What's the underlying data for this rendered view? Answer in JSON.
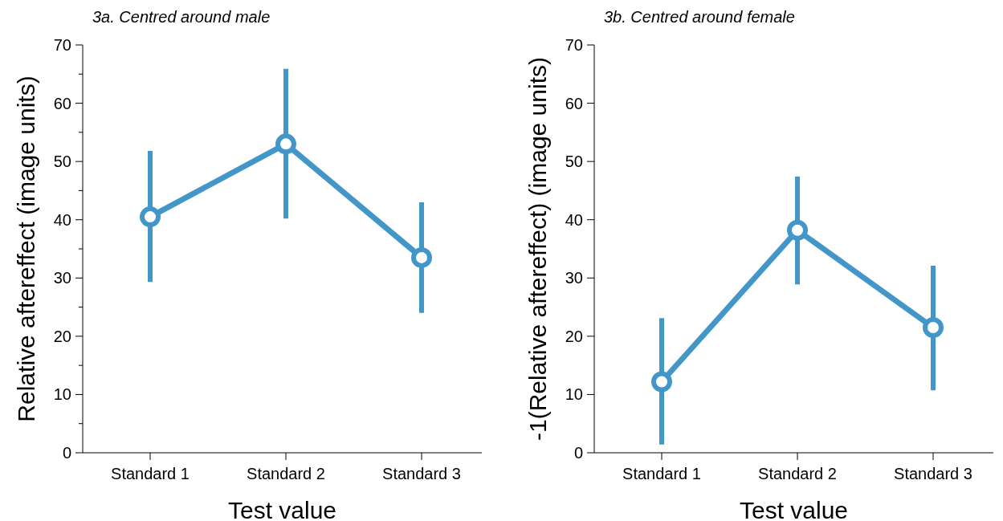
{
  "chart_data": [
    {
      "type": "line",
      "title": "3a. Centred around male",
      "xlabel": "Test value",
      "ylabel": "Relative aftereffect (image units)",
      "categories": [
        "Standard 1",
        "Standard 2",
        "Standard 3"
      ],
      "series": [
        {
          "color": "#4396c8",
          "values": [
            40.5,
            53,
            33.5
          ],
          "errors": [
            [
              29.3,
              51.8
            ],
            [
              40.2,
              65.9
            ],
            [
              24,
              43
            ]
          ]
        }
      ],
      "ylim": [
        0,
        70
      ],
      "yticks": [
        0,
        {
          "value": 5,
          "label": null
        },
        10,
        {
          "value": 15,
          "label": null
        },
        20,
        {
          "value": 25,
          "label": null
        },
        30,
        {
          "value": 35,
          "label": null
        },
        40,
        {
          "value": 45,
          "label": null
        },
        50,
        {
          "value": 55,
          "label": null
        },
        60,
        {
          "value": 65,
          "label": null
        },
        70
      ],
      "marker": "circle",
      "line_style": "solid"
    },
    {
      "type": "line",
      "title": "3b. Centred around female",
      "xlabel": "Test value",
      "ylabel": "-1(Relative aftereffect) (image units)",
      "categories": [
        "Standard 1",
        "Standard 2",
        "Standard 3"
      ],
      "series": [
        {
          "color": "#4396c8",
          "values": [
            12.2,
            38.2,
            21.5
          ],
          "errors": [
            [
              1.4,
              23.1
            ],
            [
              28.9,
              47.4
            ],
            [
              10.7,
              32.1
            ]
          ]
        }
      ],
      "ylim": [
        0,
        70
      ],
      "yticks": [
        0,
        10,
        20,
        30,
        40,
        50,
        60,
        70
      ],
      "marker": "circle",
      "line_style": "solid"
    }
  ]
}
